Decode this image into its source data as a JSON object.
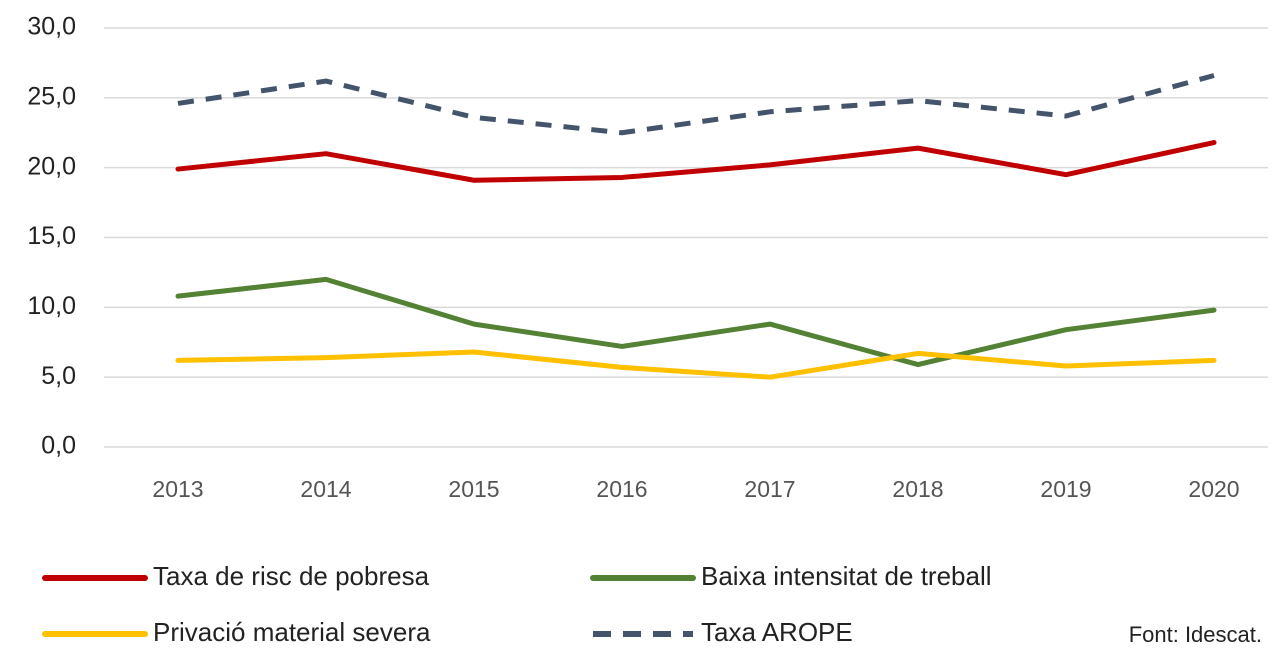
{
  "chart_data": {
    "type": "line",
    "categories": [
      "2013",
      "2014",
      "2015",
      "2016",
      "2017",
      "2018",
      "2019",
      "2020"
    ],
    "series": [
      {
        "name": "Taxa de risc de pobresa",
        "color": "#c00000",
        "dash": false,
        "values": [
          19.9,
          21.0,
          19.1,
          19.3,
          20.2,
          21.4,
          19.5,
          21.8
        ]
      },
      {
        "name": "Baixa intensitat de treball",
        "color": "#548235",
        "dash": false,
        "values": [
          10.8,
          12.0,
          8.8,
          7.2,
          8.8,
          5.9,
          8.4,
          9.8
        ]
      },
      {
        "name": "Privació material severa",
        "color": "#ffc000",
        "dash": false,
        "values": [
          6.2,
          6.4,
          6.8,
          5.7,
          5.0,
          6.7,
          5.8,
          6.2
        ]
      },
      {
        "name": "Taxa AROPE",
        "color": "#44546a",
        "dash": true,
        "values": [
          24.6,
          26.2,
          23.6,
          22.5,
          24.0,
          24.8,
          23.7,
          26.6
        ]
      }
    ],
    "ylim": [
      0,
      30
    ],
    "yticks": [
      {
        "value": 0,
        "label": "0,0"
      },
      {
        "value": 5,
        "label": "5,0"
      },
      {
        "value": 10,
        "label": "10,0"
      },
      {
        "value": 15,
        "label": "15,0"
      },
      {
        "value": 20,
        "label": "20,0"
      },
      {
        "value": 25,
        "label": "25,0"
      },
      {
        "value": 30,
        "label": "30,0"
      }
    ],
    "grid": true,
    "annotation": "Font: Idescat."
  }
}
